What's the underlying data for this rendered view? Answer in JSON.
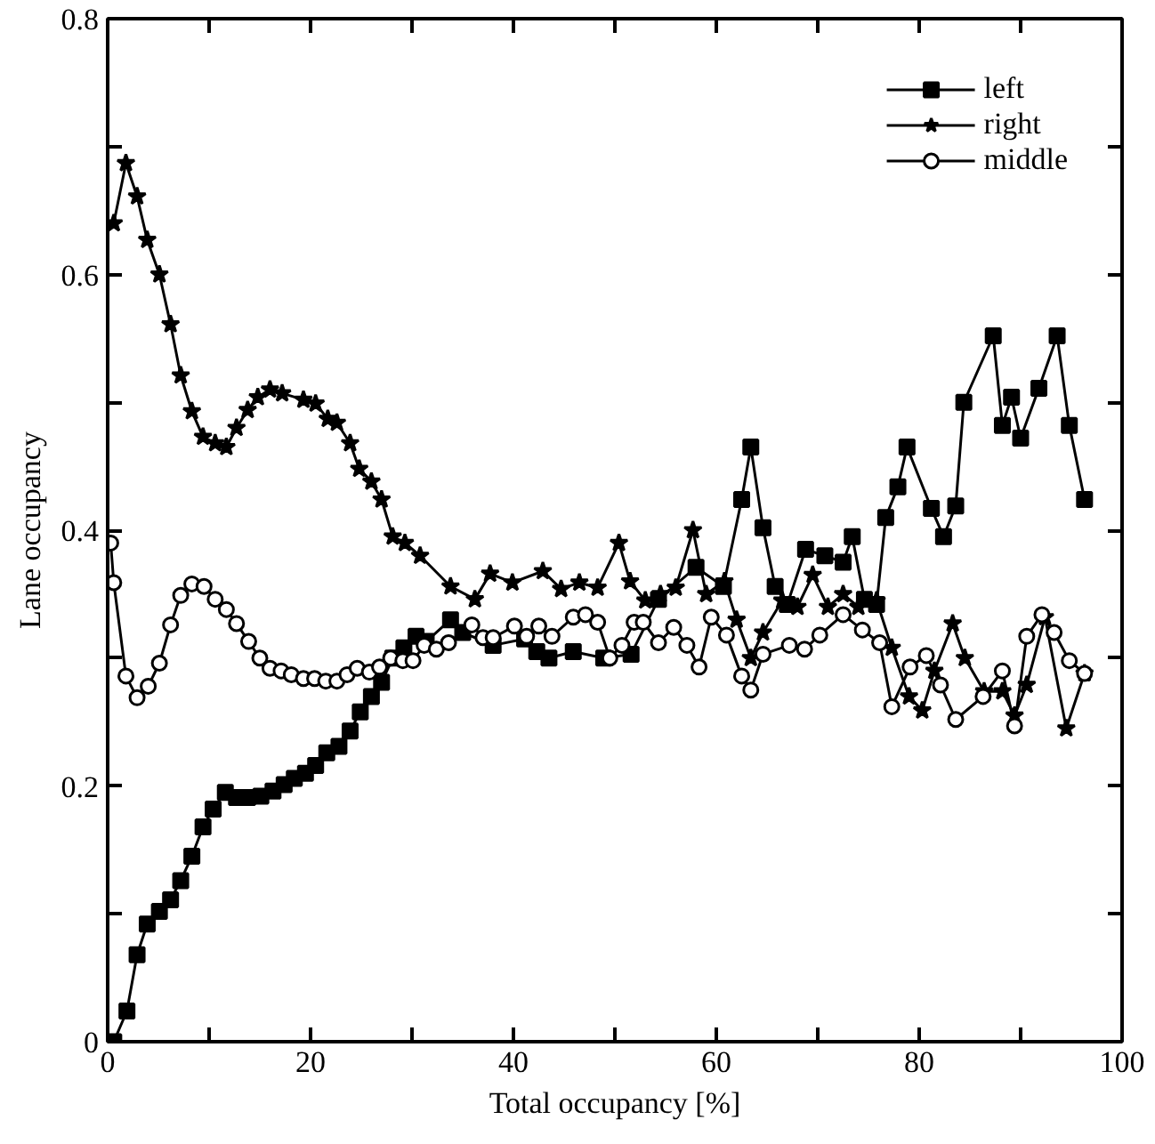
{
  "chart_data": {
    "type": "line",
    "xlabel": "Total occupancy [%]",
    "ylabel": "Lane occupancy",
    "xlim": [
      0,
      100
    ],
    "ylim": [
      0,
      0.8
    ],
    "xticks": [
      0,
      {
        "value": 10,
        "label": null
      },
      20,
      {
        "value": 30,
        "label": null
      },
      40,
      {
        "value": 50,
        "label": null
      },
      60,
      {
        "value": 70,
        "label": null
      },
      80,
      {
        "value": 90,
        "label": null
      },
      100
    ],
    "yticks": [
      0,
      {
        "value": 0.1,
        "label": null
      },
      0.2,
      {
        "value": 0.3,
        "label": null
      },
      0.4,
      {
        "value": 0.5,
        "label": null
      },
      0.6,
      {
        "value": 0.7,
        "label": null
      },
      0.8
    ],
    "grid": false,
    "legend": "top right",
    "line_style": "solid",
    "series": [
      {
        "name": "left",
        "color": "#000000",
        "marker": "square",
        "x": [
          0.6,
          1.9,
          2.9,
          3.9,
          5.1,
          6.2,
          7.2,
          8.3,
          9.4,
          10.4,
          11.6,
          12.7,
          13.8,
          15.1,
          16.3,
          17.4,
          18.4,
          19.5,
          20.5,
          21.6,
          22.8,
          23.9,
          24.9,
          26.0,
          27.0,
          28.1,
          29.2,
          30.4,
          31.4,
          33.8,
          35.0,
          38.0,
          41.1,
          42.3,
          43.5,
          45.9,
          48.9,
          51.6,
          54.3,
          58.0,
          60.7,
          62.5,
          63.4,
          64.6,
          65.8,
          67.0,
          68.8,
          70.7,
          72.5,
          73.4,
          74.6,
          75.8,
          76.7,
          77.9,
          78.8,
          81.2,
          82.4,
          83.6,
          84.4,
          87.3,
          88.2,
          89.1,
          90.0,
          91.8,
          93.6,
          94.8,
          96.3
        ],
        "values": [
          0.0,
          0.024,
          0.068,
          0.092,
          0.102,
          0.111,
          0.126,
          0.145,
          0.168,
          0.182,
          0.195,
          0.191,
          0.191,
          0.192,
          0.196,
          0.201,
          0.206,
          0.21,
          0.216,
          0.226,
          0.231,
          0.243,
          0.258,
          0.27,
          0.281,
          0.3,
          0.308,
          0.317,
          0.313,
          0.33,
          0.32,
          0.31,
          0.315,
          0.305,
          0.3,
          0.305,
          0.3,
          0.303,
          0.346,
          0.371,
          0.356,
          0.424,
          0.465,
          0.402,
          0.356,
          0.342,
          0.385,
          0.38,
          0.375,
          0.395,
          0.346,
          0.342,
          0.41,
          0.434,
          0.465,
          0.417,
          0.395,
          0.419,
          0.5,
          0.552,
          0.482,
          0.504,
          0.472,
          0.511,
          0.552,
          0.482,
          0.424
        ]
      },
      {
        "name": "right",
        "color": "#000000",
        "marker": "star",
        "x": [
          0.6,
          1.8,
          2.9,
          3.9,
          5.1,
          6.2,
          7.2,
          8.3,
          9.4,
          10.6,
          11.7,
          12.7,
          13.8,
          14.8,
          16.0,
          17.2,
          19.3,
          20.5,
          21.7,
          22.6,
          23.9,
          24.8,
          26.0,
          27.0,
          28.1,
          29.3,
          30.8,
          33.8,
          36.2,
          37.7,
          39.9,
          42.9,
          44.7,
          46.5,
          48.3,
          50.4,
          51.5,
          53.0,
          54.5,
          56.0,
          57.7,
          59.0,
          60.8,
          62.0,
          63.4,
          64.6,
          66.5,
          68.0,
          69.5,
          71.0,
          72.5,
          74.0,
          75.8,
          77.3,
          79.0,
          80.3,
          81.5,
          83.3,
          84.5,
          86.4,
          88.2,
          89.4,
          90.6,
          92.4,
          94.5,
          96.3
        ],
        "values": [
          0.64,
          0.687,
          0.661,
          0.627,
          0.6,
          0.561,
          0.521,
          0.493,
          0.473,
          0.468,
          0.465,
          0.48,
          0.494,
          0.504,
          0.51,
          0.507,
          0.502,
          0.499,
          0.487,
          0.484,
          0.468,
          0.448,
          0.438,
          0.424,
          0.395,
          0.39,
          0.38,
          0.356,
          0.346,
          0.366,
          0.359,
          0.368,
          0.354,
          0.359,
          0.355,
          0.39,
          0.36,
          0.345,
          0.35,
          0.355,
          0.4,
          0.35,
          0.36,
          0.33,
          0.3,
          0.32,
          0.345,
          0.34,
          0.365,
          0.34,
          0.35,
          0.34,
          0.345,
          0.308,
          0.27,
          0.259,
          0.29,
          0.327,
          0.3,
          0.274,
          0.274,
          0.255,
          0.279,
          0.332,
          0.245,
          0.288
        ]
      },
      {
        "name": "middle",
        "color": "#000000",
        "marker": "circle",
        "x": [
          0.3,
          0.6,
          1.8,
          2.9,
          4.0,
          5.1,
          6.2,
          7.2,
          8.3,
          9.5,
          10.6,
          11.7,
          12.7,
          13.9,
          15.0,
          16.0,
          17.1,
          18.1,
          19.3,
          20.4,
          21.5,
          22.6,
          23.6,
          24.6,
          25.8,
          26.8,
          27.9,
          29.1,
          30.1,
          31.2,
          32.4,
          33.6,
          35.9,
          37.0,
          38.0,
          40.1,
          41.3,
          42.5,
          43.8,
          45.9,
          47.1,
          48.3,
          49.5,
          50.7,
          51.9,
          52.8,
          54.3,
          55.8,
          57.1,
          58.3,
          59.5,
          61.0,
          62.5,
          63.4,
          64.6,
          67.2,
          68.7,
          70.2,
          72.5,
          74.4,
          76.1,
          77.3,
          79.1,
          80.7,
          82.1,
          83.6,
          86.3,
          88.2,
          89.4,
          90.6,
          92.1,
          93.3,
          94.8,
          96.3
        ],
        "values": [
          0.39,
          0.359,
          0.286,
          0.269,
          0.278,
          0.296,
          0.326,
          0.349,
          0.358,
          0.356,
          0.346,
          0.338,
          0.327,
          0.313,
          0.3,
          0.292,
          0.29,
          0.287,
          0.284,
          0.284,
          0.282,
          0.282,
          0.287,
          0.292,
          0.289,
          0.293,
          0.3,
          0.298,
          0.298,
          0.31,
          0.307,
          0.312,
          0.326,
          0.316,
          0.316,
          0.325,
          0.317,
          0.325,
          0.317,
          0.332,
          0.334,
          0.328,
          0.3,
          0.31,
          0.328,
          0.328,
          0.312,
          0.324,
          0.31,
          0.293,
          0.332,
          0.318,
          0.286,
          0.275,
          0.303,
          0.31,
          0.307,
          0.318,
          0.334,
          0.322,
          0.312,
          0.262,
          0.293,
          0.302,
          0.279,
          0.252,
          0.27,
          0.29,
          0.247,
          0.317,
          0.334,
          0.32,
          0.298,
          0.288
        ]
      }
    ]
  }
}
